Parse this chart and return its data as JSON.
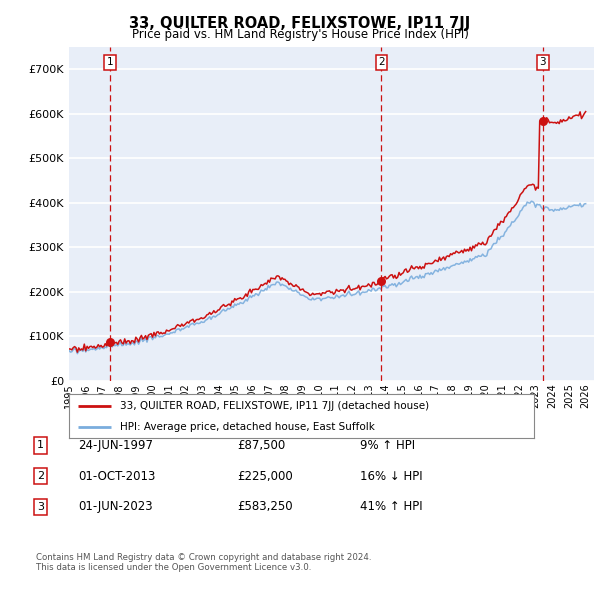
{
  "title": "33, QUILTER ROAD, FELIXSTOWE, IP11 7JJ",
  "subtitle": "Price paid vs. HM Land Registry's House Price Index (HPI)",
  "ylim": [
    0,
    750000
  ],
  "yticks": [
    0,
    100000,
    200000,
    300000,
    400000,
    500000,
    600000,
    700000
  ],
  "ytick_labels": [
    "£0",
    "£100K",
    "£200K",
    "£300K",
    "£400K",
    "£500K",
    "£600K",
    "£700K"
  ],
  "xlim_start": 1995.0,
  "xlim_end": 2026.5,
  "background_color": "#e8eef8",
  "grid_color": "#ffffff",
  "sale_color": "#cc1111",
  "hpi_color": "#7aaddd",
  "transactions": [
    {
      "num": 1,
      "date_x": 1997.47,
      "price": 87500
    },
    {
      "num": 2,
      "date_x": 2013.75,
      "price": 225000
    },
    {
      "num": 3,
      "date_x": 2023.42,
      "price": 583250
    }
  ],
  "legend_label1": "33, QUILTER ROAD, FELIXSTOWE, IP11 7JJ (detached house)",
  "legend_label2": "HPI: Average price, detached house, East Suffolk",
  "footnote1": "Contains HM Land Registry data © Crown copyright and database right 2024.",
  "footnote2": "This data is licensed under the Open Government Licence v3.0.",
  "table_rows": [
    {
      "num": 1,
      "date": "24-JUN-1997",
      "price": "£87,500",
      "change": "9% ↑ HPI"
    },
    {
      "num": 2,
      "date": "01-OCT-2013",
      "price": "£225,000",
      "change": "16% ↓ HPI"
    },
    {
      "num": 3,
      "date": "01-JUN-2023",
      "price": "£583,250",
      "change": "41% ↑ HPI"
    }
  ]
}
